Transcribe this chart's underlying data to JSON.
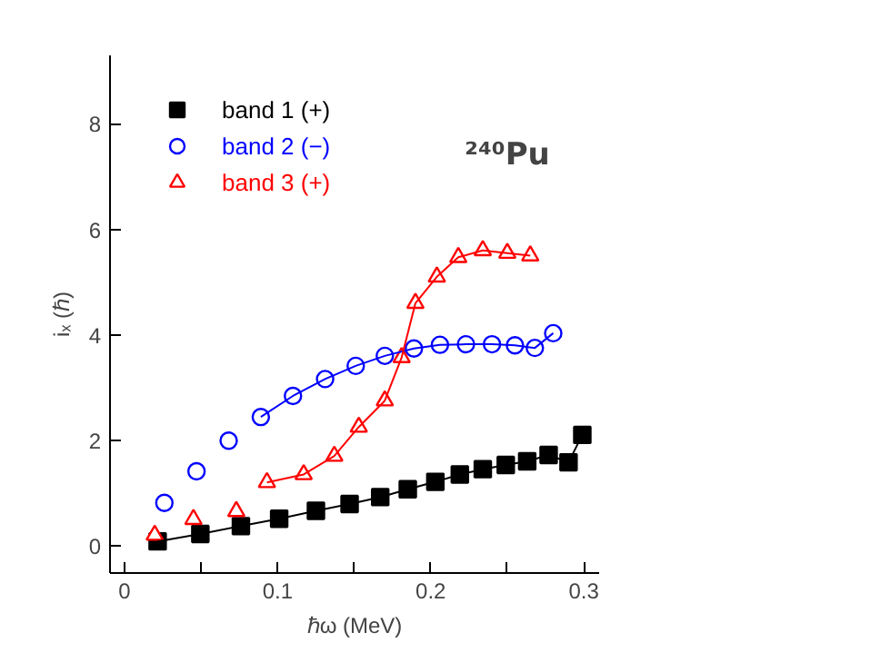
{
  "chart_data": {
    "type": "scatter",
    "xlabel": "ℏω (MeV)",
    "ylabel": "iₓ (ℏ)",
    "annotations": [
      "²⁴⁰Pu"
    ],
    "xlim": [
      -0.0095,
      0.31
    ],
    "ylim": [
      -0.52,
      9.3
    ],
    "xticks": [
      0,
      {
        "value": 0.05,
        "label": null
      },
      0.1,
      {
        "value": 0.15,
        "label": null
      },
      0.2,
      {
        "value": 0.25,
        "label": null
      },
      0.3
    ],
    "yticks": [
      0,
      2,
      4,
      6,
      8
    ],
    "grid": false,
    "legend": "top left",
    "series": [
      {
        "name": "band 1 (+)",
        "marker": "square",
        "color": "#000000",
        "x": [
          0.0216,
          0.0495,
          0.076,
          0.101,
          0.125,
          0.147,
          0.167,
          0.185,
          0.203,
          0.219,
          0.234,
          0.249,
          0.263,
          0.277,
          0.29,
          0.299
        ],
        "values": [
          0.08,
          0.22,
          0.37,
          0.51,
          0.66,
          0.79,
          0.92,
          1.07,
          1.21,
          1.35,
          1.45,
          1.53,
          1.6,
          1.72,
          1.58,
          2.1
        ]
      },
      {
        "name": "band 2 (−)",
        "marker": "circle",
        "color": "#0000ff",
        "x": [
          0.026,
          0.047,
          0.068,
          0.089,
          0.11,
          0.131,
          0.151,
          0.17,
          0.189,
          0.206,
          0.223,
          0.24,
          0.255,
          0.268,
          0.28
        ],
        "values": [
          0.81,
          1.41,
          1.99,
          2.44,
          2.84,
          3.16,
          3.41,
          3.6,
          3.74,
          3.81,
          3.82,
          3.82,
          3.8,
          3.75,
          4.03
        ]
      },
      {
        "name": "band 3 (+)",
        "marker": "triangle",
        "color": "#ff0000",
        "x": [
          0.0197,
          0.045,
          0.073,
          0.093,
          0.117,
          0.137,
          0.153,
          0.17,
          0.181,
          0.19,
          0.204,
          0.218,
          0.234,
          0.25,
          0.265
        ],
        "values": [
          0.2,
          0.5,
          0.65,
          1.2,
          1.35,
          1.7,
          2.25,
          2.75,
          3.57,
          4.6,
          5.1,
          5.47,
          5.6,
          5.55,
          5.5
        ]
      },
      {
        "type": "line",
        "marker": "none",
        "color": "#000000",
        "x": [
          0.0216,
          0.0495,
          0.076,
          0.101,
          0.125,
          0.147,
          0.167,
          0.185,
          0.203,
          0.219,
          0.234,
          0.249,
          0.263,
          0.277,
          0.29,
          0.299
        ],
        "values": [
          0.08,
          0.22,
          0.37,
          0.51,
          0.66,
          0.79,
          0.92,
          1.07,
          1.21,
          1.35,
          1.45,
          1.53,
          1.6,
          1.72,
          1.58,
          2.1
        ]
      },
      {
        "type": "line",
        "marker": "none",
        "color": "#0000ff",
        "x": [
          0.089,
          0.11,
          0.131,
          0.151,
          0.17,
          0.189,
          0.206,
          0.223,
          0.24,
          0.255,
          0.268,
          0.28
        ],
        "values": [
          2.44,
          2.84,
          3.16,
          3.41,
          3.6,
          3.74,
          3.81,
          3.82,
          3.82,
          3.8,
          3.75,
          4.03
        ]
      },
      {
        "type": "line",
        "marker": "none",
        "color": "#ff0000",
        "x": [
          0.093,
          0.117,
          0.137,
          0.153,
          0.17,
          0.181,
          0.19,
          0.204,
          0.218,
          0.234,
          0.25,
          0.265
        ],
        "values": [
          1.2,
          1.35,
          1.7,
          2.25,
          2.75,
          3.57,
          4.6,
          5.1,
          5.47,
          5.6,
          5.55,
          5.5
        ]
      }
    ]
  }
}
